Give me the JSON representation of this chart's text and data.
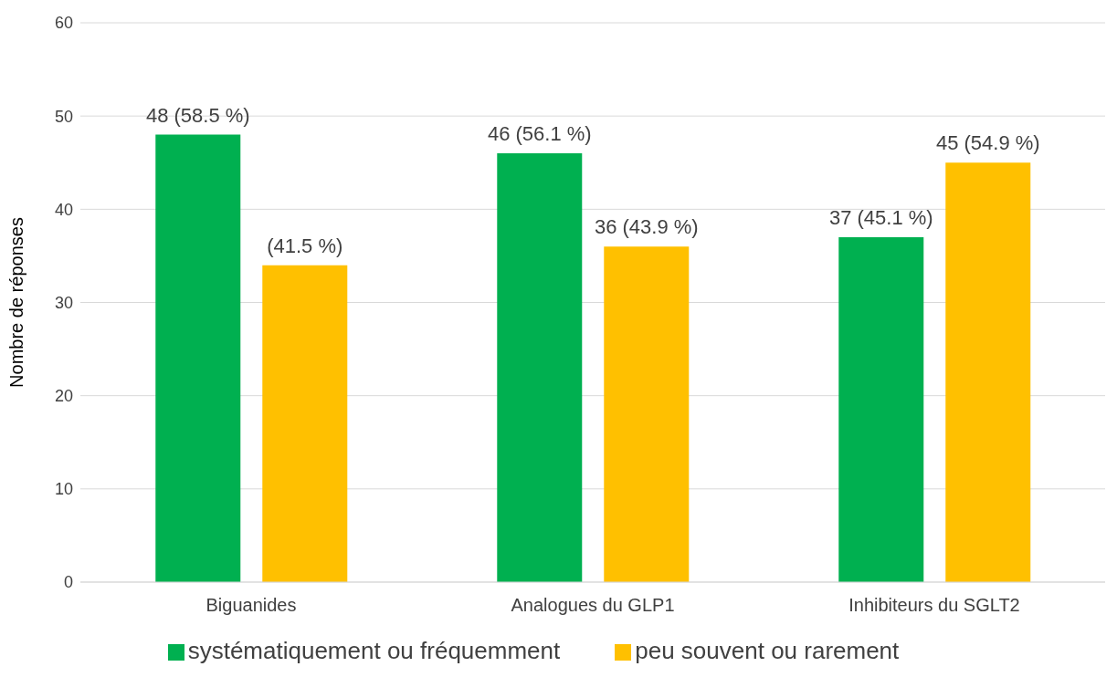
{
  "chart_data": {
    "type": "bar",
    "categories": [
      "Biguanides",
      "Analogues du GLP1",
      "Inhibiteurs du SGLT2"
    ],
    "series": [
      {
        "name": "systématiquement ou fréquemment",
        "color": "#00b050",
        "values": [
          48,
          46,
          37
        ],
        "value_labels": [
          "48 (58.5 %)",
          "46 (56.1 %)",
          "37 (45.1 %)"
        ]
      },
      {
        "name": "peu souvent ou rarement",
        "color": "#ffc000",
        "values": [
          34,
          36,
          45
        ],
        "value_labels": [
          null,
          "36 (43.9 %)",
          "45 (54.9 %)"
        ]
      }
    ],
    "annotations": [
      "(41.5 %)"
    ],
    "ylabel": "Nombre de réponses",
    "ylim": [
      0,
      60
    ],
    "yticks": [
      0,
      10,
      20,
      30,
      40,
      50,
      60
    ],
    "grid": "y",
    "legend": "bottom"
  }
}
